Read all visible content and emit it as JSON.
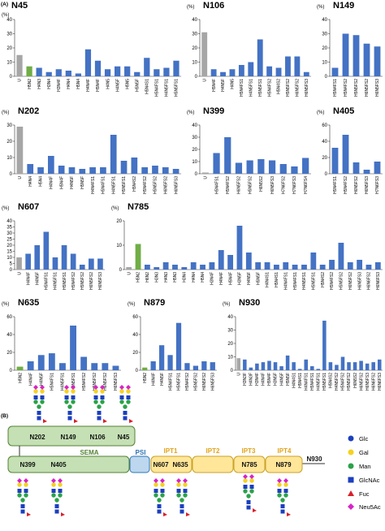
{
  "panel_a_label": "(A)",
  "panel_b_label": "(B)",
  "chart_data": [
    {
      "type": "bar",
      "title": "N45",
      "y_label": "(%)",
      "ylim": [
        0,
        40
      ],
      "yticks": [
        0,
        10,
        20,
        30,
        40
      ],
      "categories": [
        "U",
        "H5N2",
        "H4N3",
        "H3N4",
        "H3N4F",
        "H4N4",
        "H5N4",
        "H4N4F",
        "H5N4F",
        "H4N5",
        "H4N5F",
        "H5N5",
        "H5N5F",
        "H5N4S1",
        "H5N4FS1",
        "H4N5FS1",
        "H5N5FS1"
      ],
      "values": [
        15,
        7,
        6,
        3,
        5,
        4,
        2,
        19,
        11,
        5,
        7,
        7,
        3,
        13,
        5,
        6,
        11
      ],
      "colors": [
        "#a6a6a6",
        "#70ad47",
        "#4472c4",
        "#4472c4",
        "#4472c4",
        "#4472c4",
        "#4472c4",
        "#4472c4",
        "#4472c4",
        "#4472c4",
        "#4472c4",
        "#4472c4",
        "#4472c4",
        "#4472c4",
        "#4472c4",
        "#4472c4",
        "#4472c4"
      ]
    },
    {
      "type": "bar",
      "title": "N106",
      "y_label": "(%)",
      "ylim": [
        0,
        40
      ],
      "yticks": [
        0,
        10,
        20,
        30,
        40
      ],
      "categories": [
        "U",
        "H5N4F",
        "H4N5F",
        "H4N5",
        "H5N4FS1",
        "H4N5FS1",
        "H5N5FS1",
        "H5N4FS2",
        "H5N4S2",
        "H5N5FS2",
        "H6N5FS2",
        "H6N5FS3"
      ],
      "values": [
        31,
        5,
        3,
        5,
        8,
        10,
        26,
        7,
        6,
        14,
        14,
        3
      ],
      "colors": [
        "#a6a6a6",
        "#4472c4",
        "#4472c4",
        "#4472c4",
        "#4472c4",
        "#4472c4",
        "#4472c4",
        "#4472c4",
        "#4472c4",
        "#4472c4",
        "#4472c4",
        "#4472c4"
      ]
    },
    {
      "type": "bar",
      "title": "N149",
      "y_label": "(%)",
      "ylim": [
        0,
        40
      ],
      "yticks": [
        0,
        10,
        20,
        30,
        40
      ],
      "categories": [
        "H5N4FS1",
        "H5N4FS2",
        "H5N5FS2",
        "H6N5FS2",
        "H6N5FS3"
      ],
      "values": [
        6,
        30,
        29,
        23,
        21
      ],
      "colors": [
        "#4472c4",
        "#4472c4",
        "#4472c4",
        "#4472c4",
        "#4472c4"
      ]
    },
    {
      "type": "bar",
      "title": "N202",
      "y_label": "(%)",
      "ylim": [
        0,
        30
      ],
      "yticks": [
        0,
        10,
        20,
        30
      ],
      "categories": [
        "U",
        "H4N4",
        "H5N4",
        "H4N4F",
        "H5N4F",
        "H4N5F",
        "H5N5F",
        "H4N4FS1",
        "H5N4FS1",
        "H4N5FS1",
        "H5N5FS1",
        "H5N4S2",
        "H5N4FS2",
        "H5N5FS2",
        "H6N5FS2",
        "H6N5FS3"
      ],
      "values": [
        29,
        6,
        4,
        11,
        5,
        4,
        3,
        4,
        4,
        24,
        8,
        10,
        4,
        5,
        4,
        3
      ],
      "colors": [
        "#a6a6a6",
        "#4472c4",
        "#4472c4",
        "#4472c4",
        "#4472c4",
        "#4472c4",
        "#4472c4",
        "#4472c4",
        "#4472c4",
        "#4472c4",
        "#4472c4",
        "#4472c4",
        "#4472c4",
        "#4472c4",
        "#4472c4",
        "#4472c4"
      ]
    },
    {
      "type": "bar",
      "title": "N399",
      "y_label": "(%)",
      "ylim": [
        0,
        40
      ],
      "yticks": [
        0,
        10,
        20,
        30,
        40
      ],
      "categories": [
        "U",
        "H5N4FS1",
        "H5N4FS2",
        "H6N5FS2",
        "H5N5FS2",
        "H6N5S2",
        "H6N5FS3",
        "H7N6FS2",
        "H7N6FS3",
        "H7N6FS4"
      ],
      "values": [
        1,
        17,
        30,
        9,
        11,
        12,
        11,
        8,
        6,
        13
      ],
      "colors": [
        "#a6a6a6",
        "#4472c4",
        "#4472c4",
        "#4472c4",
        "#4472c4",
        "#4472c4",
        "#4472c4",
        "#4472c4",
        "#4472c4",
        "#4472c4"
      ]
    },
    {
      "type": "bar",
      "title": "N405",
      "y_label": "(%)",
      "ylim": [
        0,
        60
      ],
      "yticks": [
        0,
        20,
        40,
        60
      ],
      "categories": [
        "H5N4FS1",
        "H5N4FS2",
        "H6N5FS2",
        "H6N5FS3",
        "H7N6FS3"
      ],
      "values": [
        32,
        48,
        14,
        5,
        15
      ],
      "colors": [
        "#4472c4",
        "#4472c4",
        "#4472c4",
        "#4472c4",
        "#4472c4"
      ]
    },
    {
      "type": "bar",
      "title": "N607",
      "y_label": "(%)",
      "ylim": [
        0,
        40
      ],
      "yticks": [
        0,
        5,
        10,
        15,
        20,
        25,
        30,
        35,
        40
      ],
      "categories": [
        "U",
        "H4N4F",
        "H4N5F",
        "H5N4FS1",
        "H4N5FS1",
        "H5N5FS1",
        "H5N4FS2",
        "H5N5FS2",
        "H6N5FS2",
        "H6N5FS3"
      ],
      "values": [
        10,
        13,
        20,
        31,
        10,
        20,
        13,
        4,
        9,
        9
      ],
      "colors": [
        "#a6a6a6",
        "#4472c4",
        "#4472c4",
        "#4472c4",
        "#4472c4",
        "#4472c4",
        "#4472c4",
        "#4472c4",
        "#4472c4",
        "#4472c4"
      ]
    },
    {
      "type": "bar",
      "title": "N785",
      "y_label": "(%)",
      "ylim": [
        0,
        20
      ],
      "yticks": [
        0,
        10,
        20
      ],
      "categories": [
        "U",
        "H5N2",
        "H6N2",
        "H3N3",
        "H4N3",
        "H5N3",
        "H3N4",
        "H4N4",
        "H5N4",
        "H3N4F",
        "H4N4F",
        "H5N4F",
        "H3N5F",
        "H4N5F",
        "H5N5F",
        "H4N4S1",
        "H5N4S1",
        "H4N4FS1",
        "H5N4FS1",
        "H4N5FS1",
        "H5N5FS1",
        "H5N4S2",
        "H5N4FS2",
        "H5N5FS2",
        "H6N5FS2",
        "H6N5FS3",
        "H6N6FS2",
        "H6N6FS3"
      ],
      "values": [
        1,
        10.5,
        2,
        1,
        3,
        2,
        1,
        3,
        2,
        3,
        8,
        6,
        18,
        7,
        3,
        3,
        2,
        3,
        2,
        2,
        7,
        2,
        4,
        11,
        3,
        4,
        2,
        3
      ],
      "colors": [
        "#a6a6a6",
        "#70ad47",
        "#4472c4",
        "#4472c4",
        "#4472c4",
        "#4472c4",
        "#4472c4",
        "#4472c4",
        "#4472c4",
        "#4472c4",
        "#4472c4",
        "#4472c4",
        "#4472c4",
        "#4472c4",
        "#4472c4",
        "#4472c4",
        "#4472c4",
        "#4472c4",
        "#4472c4",
        "#4472c4",
        "#4472c4",
        "#4472c4",
        "#4472c4",
        "#4472c4",
        "#4472c4",
        "#4472c4",
        "#4472c4",
        "#4472c4"
      ]
    },
    {
      "type": "bar",
      "title": "N635",
      "y_label": "(%)",
      "ylim": [
        0,
        60
      ],
      "yticks": [
        0,
        20,
        40,
        60
      ],
      "categories": [
        "H5N2",
        "H4N4F",
        "H4N5F",
        "H5N4FS1",
        "H4N5FS1",
        "H5N5FS1",
        "H5N4FS2",
        "H5N5FS2",
        "H6N5FS2",
        "H6N5FS3"
      ],
      "values": [
        4,
        10,
        17,
        19,
        8,
        50,
        15,
        8,
        8,
        5
      ],
      "colors": [
        "#70ad47",
        "#4472c4",
        "#4472c4",
        "#4472c4",
        "#4472c4",
        "#4472c4",
        "#4472c4",
        "#4472c4",
        "#4472c4",
        "#4472c4"
      ]
    },
    {
      "type": "bar",
      "title": "N879",
      "y_label": "(%)",
      "ylim": [
        0,
        60
      ],
      "yticks": [
        0,
        20,
        40,
        60
      ],
      "categories": [
        "H5N2",
        "H4N4F",
        "H4N5F",
        "H5N4FS1",
        "H5N5FS1",
        "H5N4FS2",
        "H5N5FS2",
        "H6N5FS2",
        "H6N5FS3"
      ],
      "values": [
        3,
        10,
        28,
        17,
        53,
        8,
        5,
        10,
        9
      ],
      "colors": [
        "#70ad47",
        "#4472c4",
        "#4472c4",
        "#4472c4",
        "#4472c4",
        "#4472c4",
        "#4472c4",
        "#4472c4",
        "#4472c4"
      ]
    },
    {
      "type": "bar",
      "title": "N930",
      "y_label": "(%)",
      "ylim": [
        0,
        40
      ],
      "yticks": [
        0,
        10,
        20,
        30,
        40
      ],
      "categories": [
        "U",
        "H3N3F",
        "H4N3F",
        "H3N4F",
        "H4N4F",
        "H5N4F",
        "H3N5F",
        "H4N5F",
        "H5N5F",
        "H4N4S1",
        "H5N4S1",
        "H4N4FS1",
        "H5N4FS1",
        "H4N5FS1",
        "H5N5FS1",
        "H5N4S2",
        "H4N5FS2",
        "H5N4FS2",
        "H5N5FS2",
        "H6N5S2",
        "H6N5FS2",
        "H6N5FS3",
        "H6N6FS2",
        "H6N6FS3"
      ],
      "values": [
        9,
        8,
        2,
        5,
        6,
        7,
        6,
        3,
        11,
        6,
        1,
        8,
        3,
        1,
        37,
        6,
        4,
        10,
        6,
        6,
        7,
        5,
        6,
        8
      ],
      "colors": [
        "#a6a6a6",
        "#4472c4",
        "#4472c4",
        "#4472c4",
        "#4472c4",
        "#4472c4",
        "#4472c4",
        "#4472c4",
        "#4472c4",
        "#4472c4",
        "#4472c4",
        "#4472c4",
        "#4472c4",
        "#4472c4",
        "#4472c4",
        "#4472c4",
        "#4472c4",
        "#4472c4",
        "#4472c4",
        "#4472c4",
        "#4472c4",
        "#4472c4",
        "#4472c4",
        "#4472c4"
      ]
    }
  ],
  "diagram": {
    "domains": [
      "SEMA",
      "PSI",
      "IPT1",
      "IPT2",
      "IPT3",
      "IPT4"
    ],
    "sites": [
      "N202",
      "N149",
      "N106",
      "N45",
      "N399",
      "N405",
      "N607",
      "N635",
      "N785",
      "N879",
      "N930"
    ],
    "legend": [
      "Glc",
      "Gal",
      "Man",
      "GlcNAc",
      "Fuc",
      "Neu5Ac"
    ]
  }
}
